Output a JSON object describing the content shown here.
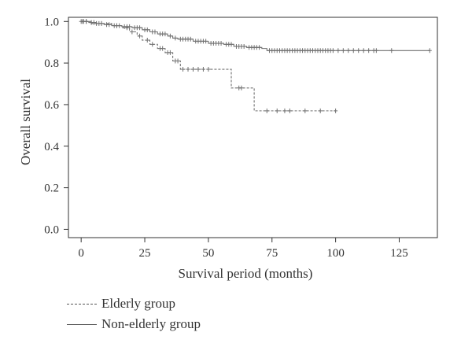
{
  "chart_data": {
    "type": "line",
    "title": "",
    "xlabel": "Survival period (months)",
    "ylabel": "Overall survival",
    "xlim": [
      -5,
      140
    ],
    "ylim": [
      -0.04,
      1.02
    ],
    "xticks": [
      "0",
      "25",
      "50",
      "75",
      "100",
      "125"
    ],
    "yticks": [
      "0.0",
      "0.2",
      "0.4",
      "0.6",
      "0.8",
      "1.0"
    ],
    "grid": false,
    "legend_position": "bottom-left",
    "series": [
      {
        "name": "Elderly group",
        "style": "dashed",
        "color": "#707070",
        "steps": [
          [
            0,
            1.0
          ],
          [
            4,
            0.99
          ],
          [
            12,
            0.98
          ],
          [
            16,
            0.97
          ],
          [
            19,
            0.95
          ],
          [
            22,
            0.93
          ],
          [
            24,
            0.91
          ],
          [
            27,
            0.89
          ],
          [
            30,
            0.87
          ],
          [
            33,
            0.85
          ],
          [
            36,
            0.81
          ],
          [
            39,
            0.77
          ],
          [
            59,
            0.68
          ],
          [
            68,
            0.57
          ],
          [
            100,
            0.57
          ]
        ],
        "censored": [
          [
            0.5,
            1.0
          ],
          [
            2,
            1.0
          ],
          [
            6,
            0.99
          ],
          [
            8,
            0.99
          ],
          [
            14,
            0.98
          ],
          [
            18,
            0.97
          ],
          [
            20,
            0.95
          ],
          [
            23,
            0.93
          ],
          [
            26,
            0.91
          ],
          [
            28,
            0.89
          ],
          [
            31,
            0.87
          ],
          [
            32,
            0.87
          ],
          [
            34,
            0.85
          ],
          [
            35,
            0.85
          ],
          [
            37,
            0.81
          ],
          [
            38,
            0.81
          ],
          [
            40,
            0.77
          ],
          [
            42,
            0.77
          ],
          [
            44,
            0.77
          ],
          [
            46,
            0.77
          ],
          [
            48,
            0.77
          ],
          [
            50,
            0.77
          ],
          [
            62,
            0.68
          ],
          [
            63,
            0.68
          ],
          [
            73,
            0.57
          ],
          [
            77,
            0.57
          ],
          [
            80,
            0.57
          ],
          [
            82,
            0.57
          ],
          [
            88,
            0.57
          ],
          [
            94,
            0.57
          ],
          [
            100,
            0.57
          ]
        ]
      },
      {
        "name": "Non-elderly group",
        "style": "solid",
        "color": "#707070",
        "steps": [
          [
            0,
            1.0
          ],
          [
            3,
            0.995
          ],
          [
            6,
            0.99
          ],
          [
            9,
            0.985
          ],
          [
            12,
            0.98
          ],
          [
            16,
            0.975
          ],
          [
            20,
            0.97
          ],
          [
            24,
            0.96
          ],
          [
            27,
            0.95
          ],
          [
            30,
            0.94
          ],
          [
            34,
            0.93
          ],
          [
            36,
            0.92
          ],
          [
            38,
            0.915
          ],
          [
            44,
            0.905
          ],
          [
            50,
            0.895
          ],
          [
            56,
            0.89
          ],
          [
            60,
            0.88
          ],
          [
            65,
            0.875
          ],
          [
            71,
            0.87
          ],
          [
            73,
            0.86
          ],
          [
            137,
            0.86
          ]
        ],
        "censored": [
          [
            0,
            1.0
          ],
          [
            1,
            1.0
          ],
          [
            2,
            1.0
          ],
          [
            4,
            0.995
          ],
          [
            5,
            0.995
          ],
          [
            7,
            0.99
          ],
          [
            8,
            0.99
          ],
          [
            10,
            0.985
          ],
          [
            11,
            0.985
          ],
          [
            13,
            0.98
          ],
          [
            14,
            0.98
          ],
          [
            15,
            0.98
          ],
          [
            17,
            0.975
          ],
          [
            18,
            0.975
          ],
          [
            19,
            0.975
          ],
          [
            21,
            0.97
          ],
          [
            22,
            0.97
          ],
          [
            23,
            0.97
          ],
          [
            25,
            0.96
          ],
          [
            26,
            0.96
          ],
          [
            28,
            0.95
          ],
          [
            29,
            0.95
          ],
          [
            31,
            0.94
          ],
          [
            32,
            0.94
          ],
          [
            33,
            0.94
          ],
          [
            35,
            0.93
          ],
          [
            37,
            0.92
          ],
          [
            39,
            0.915
          ],
          [
            40,
            0.915
          ],
          [
            41,
            0.915
          ],
          [
            42,
            0.915
          ],
          [
            43,
            0.915
          ],
          [
            45,
            0.905
          ],
          [
            46,
            0.905
          ],
          [
            47,
            0.905
          ],
          [
            48,
            0.905
          ],
          [
            49,
            0.905
          ],
          [
            51,
            0.895
          ],
          [
            52,
            0.895
          ],
          [
            53,
            0.895
          ],
          [
            54,
            0.895
          ],
          [
            55,
            0.895
          ],
          [
            57,
            0.89
          ],
          [
            58,
            0.89
          ],
          [
            59,
            0.89
          ],
          [
            61,
            0.88
          ],
          [
            62,
            0.88
          ],
          [
            63,
            0.88
          ],
          [
            64,
            0.88
          ],
          [
            66,
            0.875
          ],
          [
            67,
            0.875
          ],
          [
            68,
            0.875
          ],
          [
            69,
            0.875
          ],
          [
            70,
            0.875
          ],
          [
            74,
            0.86
          ],
          [
            75,
            0.86
          ],
          [
            76,
            0.86
          ],
          [
            77,
            0.86
          ],
          [
            78,
            0.86
          ],
          [
            79,
            0.86
          ],
          [
            80,
            0.86
          ],
          [
            81,
            0.86
          ],
          [
            82,
            0.86
          ],
          [
            83,
            0.86
          ],
          [
            84,
            0.86
          ],
          [
            85,
            0.86
          ],
          [
            86,
            0.86
          ],
          [
            87,
            0.86
          ],
          [
            88,
            0.86
          ],
          [
            89,
            0.86
          ],
          [
            90,
            0.86
          ],
          [
            91,
            0.86
          ],
          [
            92,
            0.86
          ],
          [
            93,
            0.86
          ],
          [
            94,
            0.86
          ],
          [
            95,
            0.86
          ],
          [
            96,
            0.86
          ],
          [
            97,
            0.86
          ],
          [
            98,
            0.86
          ],
          [
            99,
            0.86
          ],
          [
            101,
            0.86
          ],
          [
            103,
            0.86
          ],
          [
            105,
            0.86
          ],
          [
            107,
            0.86
          ],
          [
            109,
            0.86
          ],
          [
            111,
            0.86
          ],
          [
            113,
            0.86
          ],
          [
            115,
            0.86
          ],
          [
            116,
            0.86
          ],
          [
            122,
            0.86
          ],
          [
            137,
            0.86
          ]
        ]
      }
    ]
  },
  "legend": {
    "items": [
      {
        "label": "Elderly group",
        "style": "dashed"
      },
      {
        "label": "Non-elderly group",
        "style": "solid"
      }
    ]
  },
  "colors": {
    "axis": "#333333",
    "line": "#707070",
    "text": "#333333"
  }
}
